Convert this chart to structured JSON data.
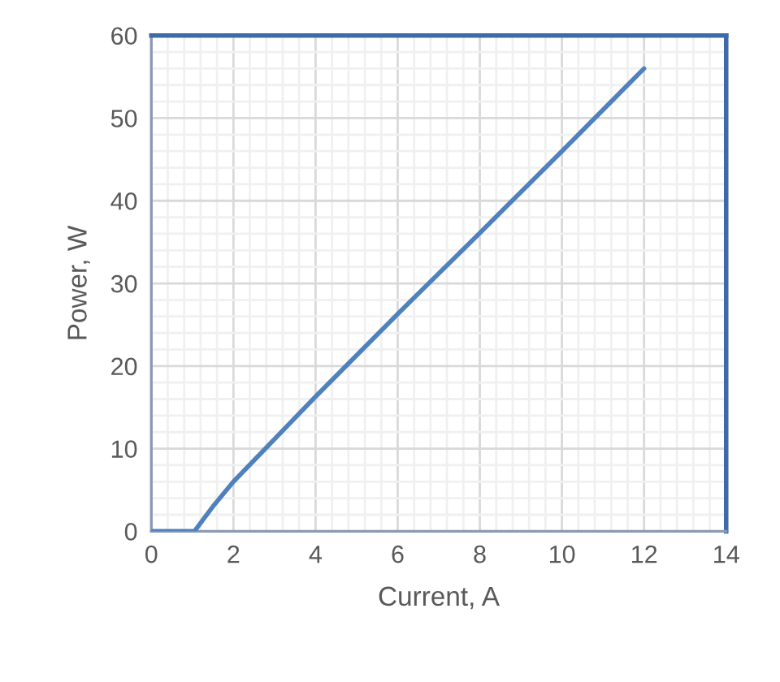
{
  "chart_data": {
    "type": "line",
    "xlabel": "Current, A",
    "ylabel": "Power, W",
    "x": [
      0,
      1.05,
      1.5,
      2,
      4,
      6,
      8,
      10,
      12
    ],
    "series": [
      {
        "color": "#4f81bd",
        "values": [
          0,
          0,
          3,
          6,
          16.3,
          26.3,
          36.1,
          46,
          56
        ]
      }
    ],
    "xlim": [
      0,
      14
    ],
    "ylim": [
      0,
      60
    ],
    "xticks": [
      0,
      2,
      4,
      6,
      8,
      10,
      12,
      14
    ],
    "yticks": [
      0,
      10,
      20,
      30,
      40,
      50,
      60
    ],
    "grid": true
  }
}
